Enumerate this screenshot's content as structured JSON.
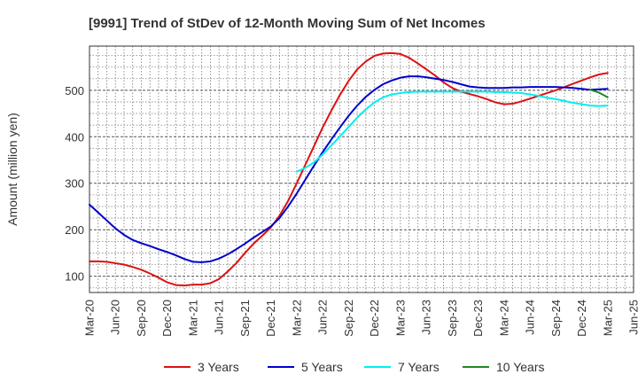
{
  "chart_data": {
    "type": "line",
    "title": "[9991]  Trend of StDev of 12-Month Moving Sum of Net Incomes",
    "xlabel": "",
    "ylabel": "Amount (million yen)",
    "ylim": [
      65,
      595
    ],
    "yticks": [
      100,
      200,
      300,
      400,
      500
    ],
    "x_ticks": [
      "Mar-20",
      "Jun-20",
      "Sep-20",
      "Dec-20",
      "Mar-21",
      "Jun-21",
      "Sep-21",
      "Dec-21",
      "Mar-22",
      "Jun-22",
      "Sep-22",
      "Dec-22",
      "Mar-23",
      "Jun-23",
      "Sep-23",
      "Dec-23",
      "Mar-24",
      "Jun-24",
      "Sep-24",
      "Dec-24",
      "Mar-25",
      "Jun-25"
    ],
    "grid": true,
    "legend_position": "bottom",
    "series": [
      {
        "name": "3 Years",
        "color": "#dd1111",
        "points": [
          [
            "Mar-20",
            132
          ],
          [
            "Apr-20",
            132
          ],
          [
            "May-20",
            131
          ],
          [
            "Jun-20",
            128
          ],
          [
            "Jul-20",
            125
          ],
          [
            "Aug-20",
            120
          ],
          [
            "Sep-20",
            114
          ],
          [
            "Oct-20",
            106
          ],
          [
            "Nov-20",
            97
          ],
          [
            "Dec-20",
            87
          ],
          [
            "Jan-21",
            81
          ],
          [
            "Feb-21",
            80
          ],
          [
            "Mar-21",
            82
          ],
          [
            "Apr-21",
            82
          ],
          [
            "May-21",
            85
          ],
          [
            "Jun-21",
            94
          ],
          [
            "Jul-21",
            110
          ],
          [
            "Aug-21",
            128
          ],
          [
            "Sep-21",
            150
          ],
          [
            "Oct-21",
            170
          ],
          [
            "Nov-21",
            187
          ],
          [
            "Dec-21",
            205
          ],
          [
            "Jan-22",
            230
          ],
          [
            "Feb-22",
            262
          ],
          [
            "Mar-22",
            300
          ],
          [
            "Apr-22",
            340
          ],
          [
            "May-22",
            380
          ],
          [
            "Jun-22",
            420
          ],
          [
            "Jul-22",
            456
          ],
          [
            "Aug-22",
            490
          ],
          [
            "Sep-22",
            520
          ],
          [
            "Oct-22",
            545
          ],
          [
            "Nov-22",
            562
          ],
          [
            "Dec-22",
            574
          ],
          [
            "Jan-23",
            579
          ],
          [
            "Feb-23",
            580
          ],
          [
            "Mar-23",
            578
          ],
          [
            "Apr-23",
            570
          ],
          [
            "May-23",
            558
          ],
          [
            "Jun-23",
            545
          ],
          [
            "Jul-23",
            532
          ],
          [
            "Aug-23",
            517
          ],
          [
            "Sep-23",
            505
          ],
          [
            "Oct-23",
            497
          ],
          [
            "Nov-23",
            492
          ],
          [
            "Dec-23",
            487
          ],
          [
            "Jan-24",
            481
          ],
          [
            "Feb-24",
            474
          ],
          [
            "Mar-24",
            470
          ],
          [
            "Apr-24",
            471
          ],
          [
            "May-24",
            476
          ],
          [
            "Jun-24",
            482
          ],
          [
            "Jul-24",
            488
          ],
          [
            "Aug-24",
            494
          ],
          [
            "Sep-24",
            500
          ],
          [
            "Oct-24",
            507
          ],
          [
            "Nov-24",
            514
          ],
          [
            "Dec-24",
            521
          ],
          [
            "Jan-25",
            528
          ],
          [
            "Feb-25",
            534
          ],
          [
            "Mar-25",
            537
          ]
        ]
      },
      {
        "name": "5 Years",
        "color": "#0000cc",
        "points": [
          [
            "Mar-20",
            254
          ],
          [
            "Apr-20",
            237
          ],
          [
            "May-20",
            220
          ],
          [
            "Jun-20",
            203
          ],
          [
            "Jul-20",
            189
          ],
          [
            "Aug-20",
            178
          ],
          [
            "Sep-20",
            171
          ],
          [
            "Oct-20",
            165
          ],
          [
            "Nov-20",
            158
          ],
          [
            "Dec-20",
            152
          ],
          [
            "Jan-21",
            145
          ],
          [
            "Feb-21",
            137
          ],
          [
            "Mar-21",
            131
          ],
          [
            "Apr-21",
            130
          ],
          [
            "May-21",
            132
          ],
          [
            "Jun-21",
            138
          ],
          [
            "Jul-21",
            147
          ],
          [
            "Aug-21",
            158
          ],
          [
            "Sep-21",
            170
          ],
          [
            "Oct-21",
            183
          ],
          [
            "Nov-21",
            195
          ],
          [
            "Dec-21",
            207
          ],
          [
            "Jan-22",
            225
          ],
          [
            "Feb-22",
            250
          ],
          [
            "Mar-22",
            278
          ],
          [
            "Apr-22",
            308
          ],
          [
            "May-22",
            338
          ],
          [
            "Jun-22",
            367
          ],
          [
            "Jul-22",
            394
          ],
          [
            "Aug-22",
            420
          ],
          [
            "Sep-22",
            445
          ],
          [
            "Oct-22",
            467
          ],
          [
            "Nov-22",
            486
          ],
          [
            "Dec-22",
            501
          ],
          [
            "Jan-23",
            513
          ],
          [
            "Feb-23",
            521
          ],
          [
            "Mar-23",
            527
          ],
          [
            "Apr-23",
            530
          ],
          [
            "May-23",
            530
          ],
          [
            "Jun-23",
            528
          ],
          [
            "Jul-23",
            525
          ],
          [
            "Aug-23",
            522
          ],
          [
            "Sep-23",
            518
          ],
          [
            "Oct-23",
            513
          ],
          [
            "Nov-23",
            508
          ],
          [
            "Dec-23",
            506
          ],
          [
            "Jan-24",
            505
          ],
          [
            "Feb-24",
            505
          ],
          [
            "Mar-24",
            505
          ],
          [
            "Apr-24",
            506
          ],
          [
            "May-24",
            506
          ],
          [
            "Jun-24",
            507
          ],
          [
            "Jul-24",
            507
          ],
          [
            "Aug-24",
            507
          ],
          [
            "Sep-24",
            507
          ],
          [
            "Oct-24",
            506
          ],
          [
            "Nov-24",
            505
          ],
          [
            "Dec-24",
            503
          ],
          [
            "Jan-25",
            501
          ],
          [
            "Feb-25",
            502
          ],
          [
            "Mar-25",
            503
          ]
        ]
      },
      {
        "name": "7 Years",
        "color": "#00eeee",
        "points": [
          [
            "Mar-22",
            325
          ],
          [
            "Apr-22",
            333
          ],
          [
            "May-22",
            345
          ],
          [
            "Jun-22",
            362
          ],
          [
            "Jul-22",
            381
          ],
          [
            "Aug-22",
            401
          ],
          [
            "Sep-22",
            421
          ],
          [
            "Oct-22",
            441
          ],
          [
            "Nov-22",
            459
          ],
          [
            "Dec-22",
            474
          ],
          [
            "Jan-23",
            485
          ],
          [
            "Feb-23",
            491
          ],
          [
            "Mar-23",
            494
          ],
          [
            "Apr-23",
            496
          ],
          [
            "May-23",
            497
          ],
          [
            "Jun-23",
            497
          ],
          [
            "Jul-23",
            497
          ],
          [
            "Aug-23",
            497
          ],
          [
            "Sep-23",
            497
          ],
          [
            "Oct-23",
            497
          ],
          [
            "Nov-23",
            497
          ],
          [
            "Dec-23",
            497
          ],
          [
            "Jan-24",
            497
          ],
          [
            "Feb-24",
            496
          ],
          [
            "Mar-24",
            496
          ],
          [
            "Apr-24",
            495
          ],
          [
            "May-24",
            494
          ],
          [
            "Jun-24",
            491
          ],
          [
            "Jul-24",
            488
          ],
          [
            "Aug-24",
            484
          ],
          [
            "Sep-24",
            481
          ],
          [
            "Oct-24",
            477
          ],
          [
            "Nov-24",
            473
          ],
          [
            "Dec-24",
            470
          ],
          [
            "Jan-25",
            467
          ],
          [
            "Feb-25",
            466
          ],
          [
            "Mar-25",
            467
          ]
        ]
      },
      {
        "name": "10 Years",
        "color": "#228822",
        "points": [
          [
            "Jan-25",
            501
          ],
          [
            "Feb-25",
            495
          ],
          [
            "Mar-25",
            485
          ]
        ]
      }
    ]
  }
}
